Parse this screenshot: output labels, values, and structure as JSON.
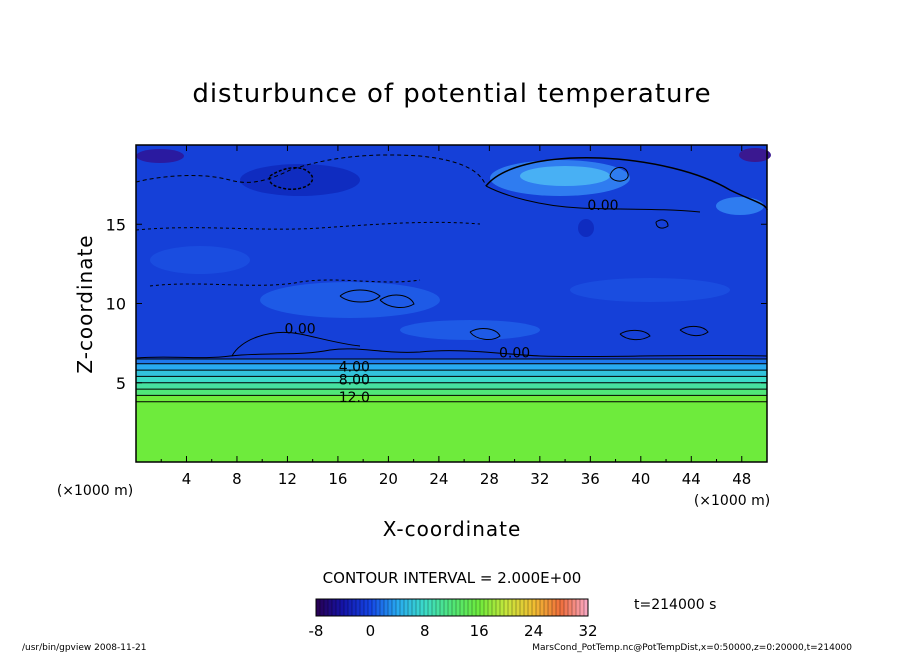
{
  "chart_data": {
    "type": "heatmap",
    "title": "disturbunce of potential temperature",
    "xlabel": "X-coordinate",
    "ylabel": "Z-coordinate",
    "x_unit": "(×1000 m)",
    "z_unit": "(×1000 m)",
    "xlim": [
      0,
      50
    ],
    "ylim": [
      0,
      20
    ],
    "x_ticks": [
      "4",
      "8",
      "12",
      "16",
      "20",
      "24",
      "28",
      "32",
      "36",
      "40",
      "44",
      "48"
    ],
    "y_ticks": [
      "5",
      "10",
      "15"
    ],
    "contour_interval_label": "CONTOUR INTERVAL = 2.000E+00",
    "time_label": "t=214000 s",
    "contour_labels": [
      {
        "text": "0.00",
        "x": 37.0,
        "z": 15.9
      },
      {
        "text": "0.00",
        "x": 13.0,
        "z": 8.1
      },
      {
        "text": "0.00",
        "x": 30.0,
        "z": 6.6
      },
      {
        "text": "4.00",
        "x": 17.3,
        "z": 5.7
      },
      {
        "text": "8.00",
        "x": 17.3,
        "z": 4.9
      },
      {
        "text": "12.0",
        "x": 17.3,
        "z": 3.8
      }
    ],
    "field_profile": [
      {
        "z": 0,
        "value": 16
      },
      {
        "z": 3.8,
        "value": 16
      },
      {
        "z": 4.2,
        "value": 12
      },
      {
        "z": 4.6,
        "value": 10
      },
      {
        "z": 5.0,
        "value": 8
      },
      {
        "z": 5.4,
        "value": 6
      },
      {
        "z": 5.8,
        "value": 4
      },
      {
        "z": 6.2,
        "value": 2
      },
      {
        "z": 6.5,
        "value": 0
      },
      {
        "z": 20,
        "value": -2
      }
    ],
    "colorbar": {
      "min": -8,
      "max": 32,
      "tick_labels": [
        "-8",
        "0",
        "8",
        "16",
        "24",
        "32"
      ]
    }
  },
  "footer": {
    "left": "/usr/bin/gpview   2008-11-21",
    "right": "MarsCond_PotTemp.nc@PotTempDist,x=0:50000,z=0:20000,t=214000"
  }
}
